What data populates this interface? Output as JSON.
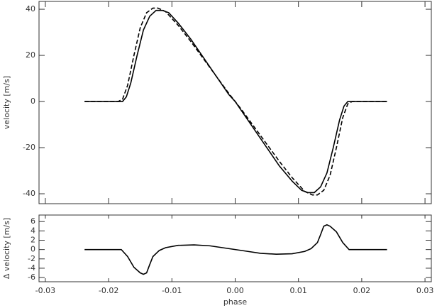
{
  "chart_data": [
    {
      "type": "line",
      "ylabel": "velocity [m/s]",
      "xlim": [
        -0.031,
        0.031
      ],
      "ylim": [
        -44.3,
        43.4
      ],
      "xticks": [
        -0.03,
        -0.02,
        -0.01,
        0,
        0.01,
        0.02,
        0.03
      ],
      "yticks": [
        -40,
        -20,
        0,
        20,
        40
      ],
      "series": [
        {
          "color": "#000000",
          "dash": false,
          "x": [
            -0.0238,
            -0.0178,
            -0.0172,
            -0.0165,
            -0.0155,
            -0.0145,
            -0.0135,
            -0.0125,
            -0.0115,
            -0.0105,
            -0.009,
            -0.007,
            -0.005,
            -0.003,
            -0.001,
            0,
            0.001,
            0.003,
            0.005,
            0.007,
            0.009,
            0.0105,
            0.0115,
            0.0125,
            0.0135,
            0.0145,
            0.0155,
            0.0165,
            0.0172,
            0.0178,
            0.024
          ],
          "values": [
            0,
            0,
            2,
            8,
            20,
            31,
            37,
            39.5,
            39.5,
            38.5,
            34,
            27,
            19,
            11,
            3,
            0,
            -4,
            -12,
            -20,
            -28,
            -34.5,
            -38.5,
            -39.5,
            -39.5,
            -37,
            -31,
            -20,
            -8,
            -2,
            0,
            0
          ]
        },
        {
          "color": "#000000",
          "dash": true,
          "x": [
            -0.0238,
            -0.0185,
            -0.0178,
            -0.017,
            -0.016,
            -0.015,
            -0.014,
            -0.013,
            -0.0122,
            -0.011,
            -0.009,
            -0.007,
            -0.005,
            -0.003,
            -0.001,
            0,
            0.001,
            0.003,
            0.005,
            0.007,
            0.009,
            0.011,
            0.0122,
            0.013,
            0.014,
            0.015,
            0.016,
            0.017,
            0.0178,
            0.0185,
            0.024
          ],
          "values": [
            0,
            0,
            1,
            7,
            20,
            32,
            38.5,
            40.5,
            40.5,
            39,
            33,
            26,
            18.5,
            11,
            3.5,
            0,
            -3.5,
            -11,
            -18.5,
            -26,
            -33,
            -39,
            -40.5,
            -40.5,
            -38.5,
            -32,
            -20,
            -7,
            -1,
            0,
            0
          ]
        }
      ]
    },
    {
      "type": "line",
      "xlabel": "phase",
      "ylabel": "Δ velocity [m/s]",
      "xlim": [
        -0.031,
        0.031
      ],
      "ylim": [
        -6.9,
        7.4
      ],
      "xticks": [
        -0.03,
        -0.02,
        -0.01,
        {
          "value": 0,
          "label": "0.00"
        },
        0.01,
        0.02,
        0.03
      ],
      "yticks": [
        -6,
        -4,
        -2,
        0,
        2,
        4,
        6
      ],
      "series": [
        {
          "color": "#000000",
          "dash": false,
          "x": [
            -0.0238,
            -0.018,
            -0.017,
            -0.016,
            -0.015,
            -0.0145,
            -0.014,
            -0.0135,
            -0.013,
            -0.012,
            -0.011,
            -0.009,
            -0.0065,
            -0.004,
            -0.002,
            0,
            0.002,
            0.004,
            0.0065,
            0.009,
            0.011,
            0.012,
            0.013,
            0.0135,
            0.014,
            0.0145,
            0.015,
            0.016,
            0.017,
            0.018,
            0.024
          ],
          "values": [
            0,
            0,
            -1.5,
            -3.8,
            -5,
            -5.3,
            -5,
            -3.2,
            -1.5,
            -0.2,
            0.4,
            0.9,
            1,
            0.8,
            0.4,
            0,
            -0.4,
            -0.8,
            -1,
            -0.9,
            -0.4,
            0.2,
            1.5,
            3.2,
            5,
            5.3,
            5,
            3.8,
            1.5,
            0,
            0
          ]
        }
      ]
    }
  ]
}
